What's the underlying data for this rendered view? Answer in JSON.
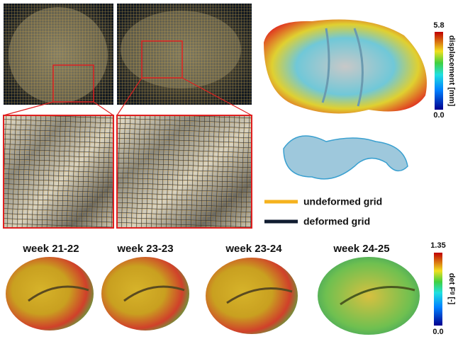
{
  "top_colorbar": {
    "max": "5.8",
    "label": "displacement [mm]",
    "min": "0.0"
  },
  "legend": {
    "items": [
      "undeformed grid",
      "deformed grid"
    ]
  },
  "bottom": {
    "panels": [
      "week 21-22",
      "week 23-23",
      "week 23-24",
      "week 24-25"
    ],
    "colorbar": {
      "max": "1.35",
      "label": "det Fᵍ [-]",
      "min": "0.0"
    }
  }
}
